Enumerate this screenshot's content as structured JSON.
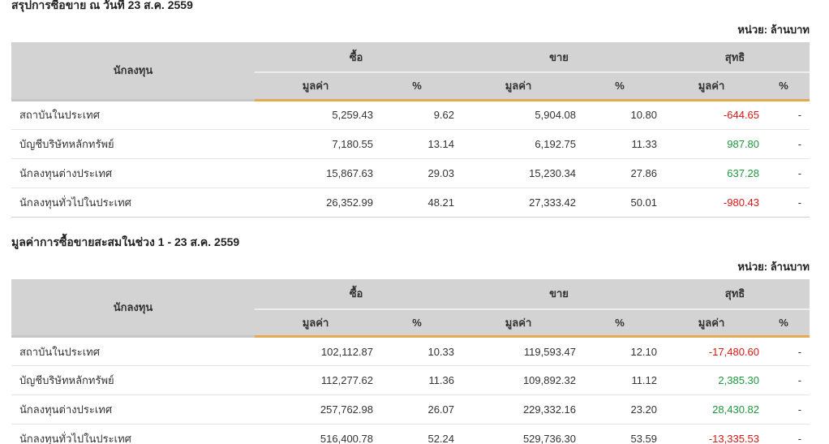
{
  "unit_label": "หน่วย: ล้านบาท",
  "columns": {
    "investor": "นักลงทุน",
    "buy": "ซื้อ",
    "sell": "ขาย",
    "net": "สุทธิ",
    "value": "มูลค่า",
    "percent": "%"
  },
  "tables": [
    {
      "title": "สรุปการซื้อขาย ณ วันที่ 23 ส.ค. 2559",
      "rows": [
        {
          "investor": "สถาบันในประเทศ",
          "buy_value": "5,259.43",
          "buy_pct": "9.62",
          "sell_value": "5,904.08",
          "sell_pct": "10.80",
          "net_value": "-644.65",
          "net_pct": "-"
        },
        {
          "investor": "บัญชีบริษัทหลักทรัพย์",
          "buy_value": "7,180.55",
          "buy_pct": "13.14",
          "sell_value": "6,192.75",
          "sell_pct": "11.33",
          "net_value": "987.80",
          "net_pct": "-"
        },
        {
          "investor": "นักลงทุนต่างประเทศ",
          "buy_value": "15,867.63",
          "buy_pct": "29.03",
          "sell_value": "15,230.34",
          "sell_pct": "27.86",
          "net_value": "637.28",
          "net_pct": "-"
        },
        {
          "investor": "นักลงทุนทั่วไปในประเทศ",
          "buy_value": "26,352.99",
          "buy_pct": "48.21",
          "sell_value": "27,333.42",
          "sell_pct": "50.01",
          "net_value": "-980.43",
          "net_pct": "-"
        }
      ]
    },
    {
      "title": "มูลค่าการซื้อขายสะสมในช่วง 1 - 23 ส.ค. 2559",
      "rows": [
        {
          "investor": "สถาบันในประเทศ",
          "buy_value": "102,112.87",
          "buy_pct": "10.33",
          "sell_value": "119,593.47",
          "sell_pct": "12.10",
          "net_value": "-17,480.60",
          "net_pct": "-"
        },
        {
          "investor": "บัญชีบริษัทหลักทรัพย์",
          "buy_value": "112,277.62",
          "buy_pct": "11.36",
          "sell_value": "109,892.32",
          "sell_pct": "11.12",
          "net_value": "2,385.30",
          "net_pct": "-"
        },
        {
          "investor": "นักลงทุนต่างประเทศ",
          "buy_value": "257,762.98",
          "buy_pct": "26.07",
          "sell_value": "229,332.16",
          "sell_pct": "23.20",
          "net_value": "28,430.82",
          "net_pct": "-"
        },
        {
          "investor": "นักลงทุนทั่วไปในประเทศ",
          "buy_value": "516,400.78",
          "buy_pct": "52.24",
          "sell_value": "529,736.30",
          "sell_pct": "53.59",
          "net_value": "-13,335.53",
          "net_pct": "-"
        }
      ]
    }
  ],
  "colors": {
    "positive": "#1E963C",
    "negative": "#DC1414",
    "header-bg": "#D3D3D3",
    "accent-line": "#E3AA52",
    "row-border": "#E4E4E4"
  }
}
